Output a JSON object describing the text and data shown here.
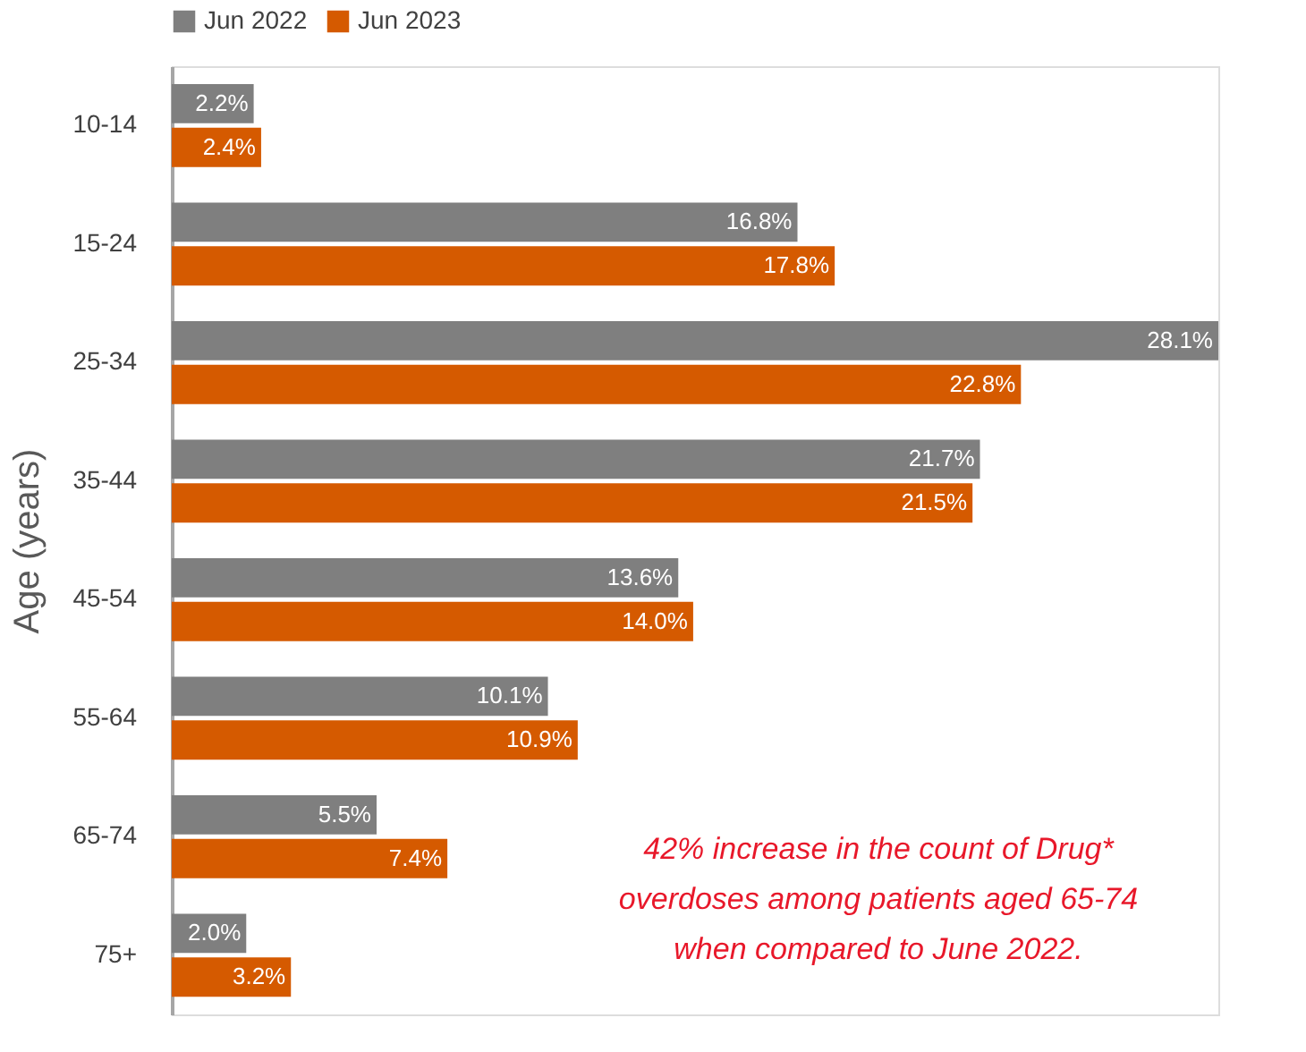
{
  "chart_data": {
    "type": "bar",
    "orientation": "horizontal",
    "ylabel": "Age (years)",
    "legend": "top",
    "categories": [
      "10-14",
      "15-24",
      "25-34",
      "35-44",
      "45-54",
      "55-64",
      "65-74",
      "75+"
    ],
    "series": [
      {
        "name": "Jun 2022",
        "color": "#7f7f7f",
        "values": [
          2.2,
          16.8,
          28.1,
          21.7,
          13.6,
          10.1,
          5.5,
          2.0
        ],
        "value_labels": [
          "2.2%",
          "16.8%",
          "28.1%",
          "21.7%",
          "13.6%",
          "10.1%",
          "5.5%",
          "2.0%"
        ]
      },
      {
        "name": "Jun 2023",
        "color": "#d55a00",
        "values": [
          2.4,
          17.8,
          22.8,
          21.5,
          14.0,
          10.9,
          7.4,
          3.2
        ],
        "value_labels": [
          "2.4%",
          "17.8%",
          "22.8%",
          "21.5%",
          "14.0%",
          "10.9%",
          "7.4%",
          "3.2%"
        ]
      }
    ],
    "annotations": [
      "42% increase in the count of Drug*\noverdoses among patients aged  65-74\nwhen compared to June 2022."
    ]
  }
}
